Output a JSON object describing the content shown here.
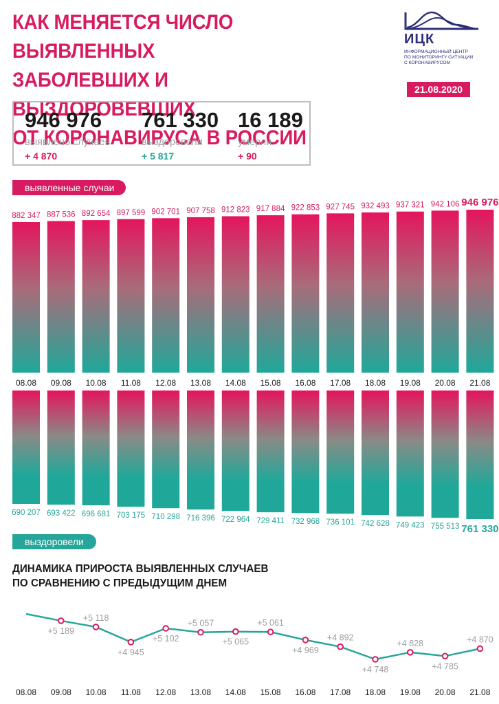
{
  "title_lines": [
    "КАК МЕНЯЕТСЯ ЧИСЛО ВЫЯВЛЕННЫХ",
    "ЗАБОЛЕВШИХ И ВЫЗДОРОВЕВШИХ",
    "ОТ КОРОНАВИРУСА В РОССИИ"
  ],
  "logo": {
    "name": "ИЦК",
    "subtitle_lines": [
      "ИНФОРМАЦИОННЫЙ ЦЕНТР",
      "ПО МОНИТОРИНГУ СИТУАЦИИ",
      "С КОРОНАВИРУСОМ"
    ]
  },
  "date": "21.08.2020",
  "summary": {
    "cases": {
      "value": "946 976",
      "label": "выявлено случаев",
      "delta": "+ 4 870"
    },
    "recovered": {
      "value": "761 330",
      "label": "выздоровели",
      "delta": "+  5 817"
    },
    "deaths": {
      "value": "16 189",
      "label": "умерли",
      "delta": "+ 90"
    }
  },
  "colors": {
    "accent": "#d81b60",
    "teal": "#26a69a",
    "gray": "#9e9e9e"
  },
  "section_cases_label": "выявленные случаи",
  "section_recovered_label": "выздоровели",
  "growth_title_lines": [
    "ДИНАМИКА ПРИРОСТА ВЫЯВЛЕННЫХ СЛУЧАЕВ",
    "ПО СРАВНЕНИЮ С ПРЕДЫДУЩИМ ДНЕМ"
  ],
  "chart_data": [
    {
      "type": "bar",
      "categories": [
        "08.08",
        "09.08",
        "10.08",
        "11.08",
        "12.08",
        "13.08",
        "14.08",
        "15.08",
        "16.08",
        "17.08",
        "18.08",
        "19.08",
        "20.08",
        "21.08"
      ],
      "values": [
        882347,
        887536,
        892654,
        897599,
        902701,
        907758,
        912823,
        917884,
        922853,
        927745,
        932493,
        937321,
        942106,
        946976
      ],
      "labels": [
        "882 347",
        "887 536",
        "892 654",
        "897 599",
        "902 701",
        "907 758",
        "912 823",
        "917 884",
        "922 853",
        "927 745",
        "932 493",
        "937 321",
        "942 106",
        "946 976"
      ],
      "title": "выявленные случаи"
    },
    {
      "type": "bar",
      "categories": [
        "08.08",
        "09.08",
        "10.08",
        "11.08",
        "12.08",
        "13.08",
        "14.08",
        "15.08",
        "16.08",
        "17.08",
        "18.08",
        "19.08",
        "20.08",
        "21.08"
      ],
      "values": [
        690207,
        693422,
        696681,
        703175,
        710298,
        716396,
        722964,
        729411,
        732968,
        736101,
        742628,
        749423,
        755513,
        761330
      ],
      "labels": [
        "690 207",
        "693 422",
        "696 681",
        "703 175",
        "710 298",
        "716 396",
        "722 964",
        "729 411",
        "732 968",
        "736 101",
        "742 628",
        "749 423",
        "755 513",
        "761 330"
      ],
      "title": "выздоровели"
    },
    {
      "type": "line",
      "x": [
        "08.08",
        "09.08",
        "10.08",
        "11.08",
        "12.08",
        "13.08",
        "14.08",
        "15.08",
        "16.08",
        "17.08",
        "18.08",
        "19.08",
        "20.08",
        "21.08"
      ],
      "values": [
        5267,
        5189,
        5118,
        4945,
        5102,
        5057,
        5065,
        5061,
        4969,
        4892,
        4748,
        4828,
        4785,
        4870
      ],
      "labels": [
        "",
        "+5 189",
        "+5 118",
        "+4 945",
        "+5 102",
        "+5 057",
        "+5 065",
        "+5 061",
        "+4 969",
        "+4 892",
        "+4 748",
        "+4 828",
        "+4 785",
        "+4 870"
      ],
      "title": "ДИНАМИКА ПРИРОСТА ВЫЯВЛЕННЫХ СЛУЧАЕВ ПО СРАВНЕНИЮ С ПРЕДЫДУЩИМ ДНЕМ"
    }
  ]
}
